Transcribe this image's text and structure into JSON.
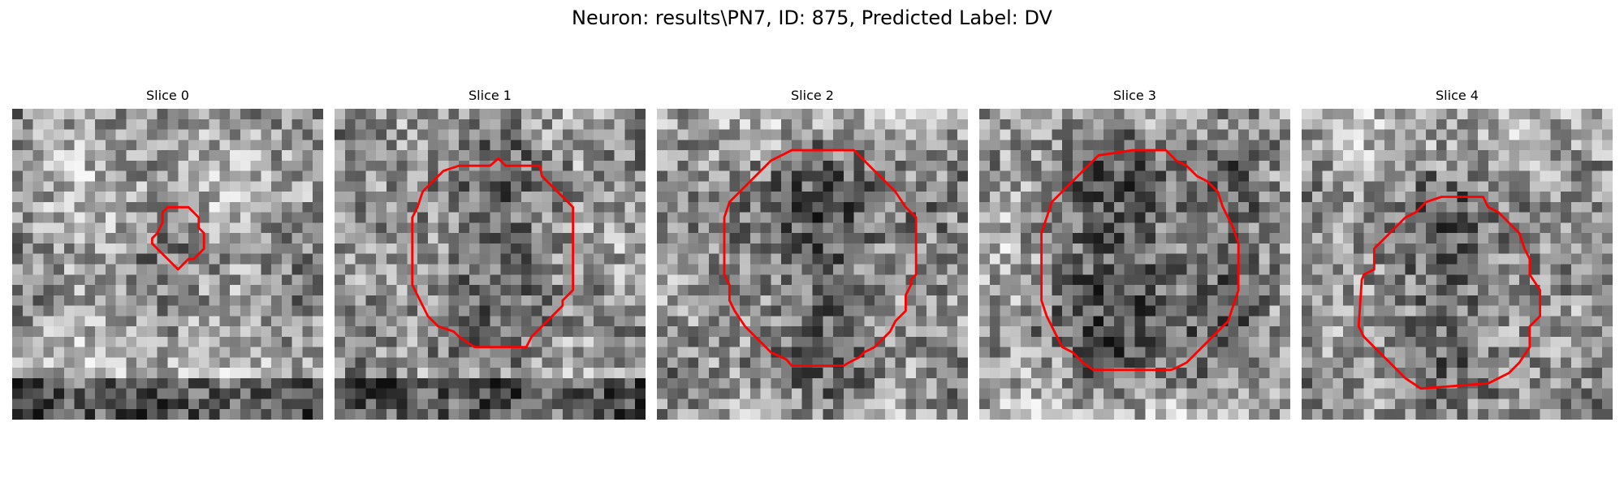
{
  "figure": {
    "title": "Neuron: results\\PN7, ID: 875, Predicted Label: DV"
  },
  "panels": [
    {
      "title": "Slice 0",
      "seed": 11,
      "contrast": 0.2
    },
    {
      "title": "Slice 1",
      "seed": 23,
      "contrast": 0.55
    },
    {
      "title": "Slice 2",
      "seed": 37,
      "contrast": 0.6
    },
    {
      "title": "Slice 3",
      "seed": 41,
      "contrast": 0.8
    },
    {
      "title": "Slice 4",
      "seed": 53,
      "contrast": 0.55
    }
  ],
  "style": {
    "contour_color": "#ff0000",
    "colormap": "gray"
  }
}
